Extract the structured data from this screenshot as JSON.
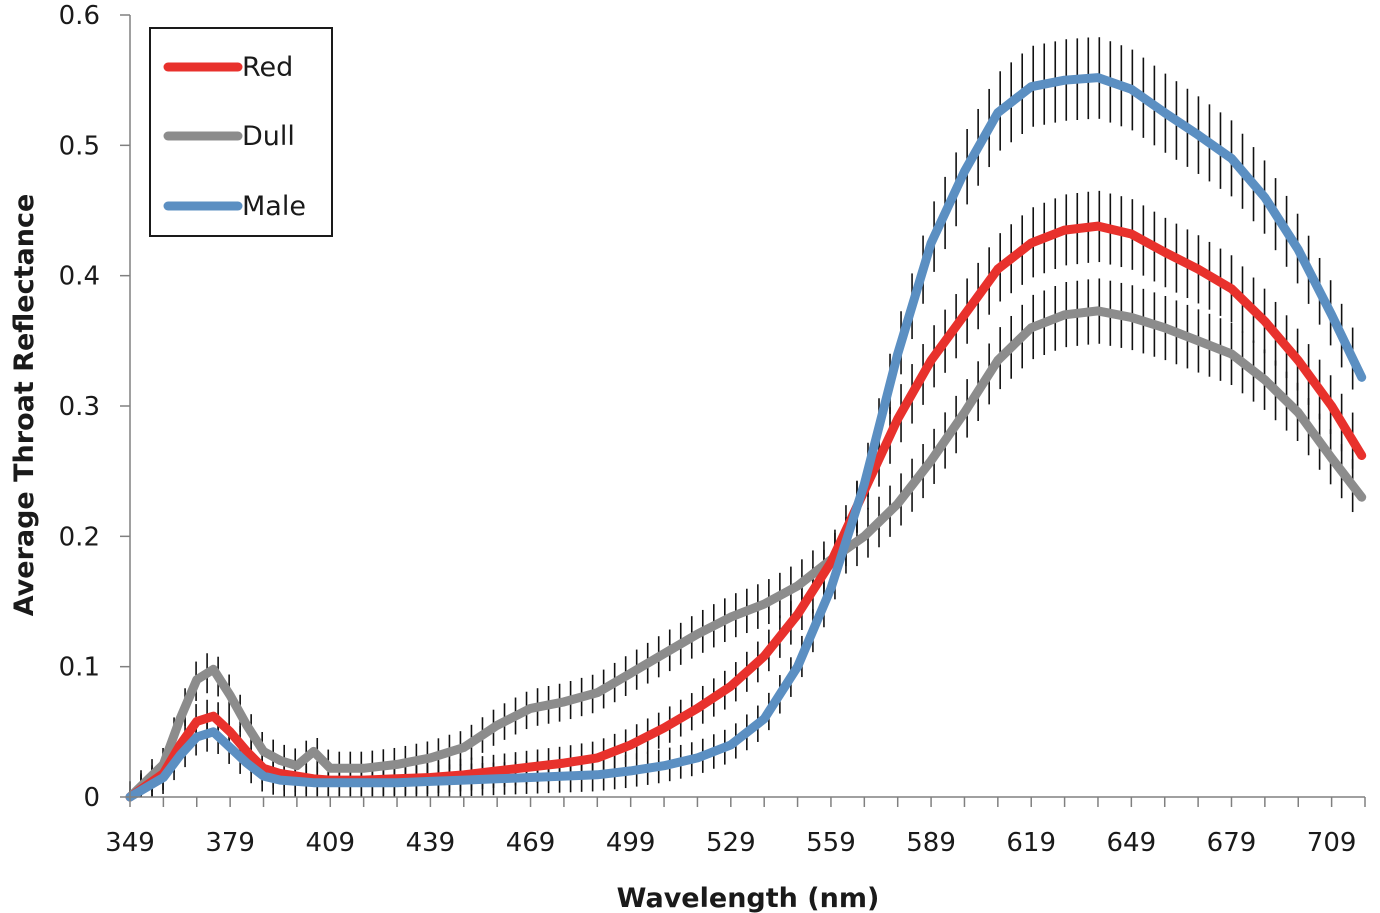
{
  "chart_data": {
    "type": "line",
    "title": "",
    "xlabel": "Wavelength (nm)",
    "ylabel": "Average Throat Reflectance",
    "xlim": [
      349,
      719
    ],
    "ylim": [
      0,
      0.6
    ],
    "x_tick_labels": [
      "349",
      "379",
      "409",
      "439",
      "469",
      "499",
      "529",
      "559",
      "589",
      "619",
      "649",
      "679",
      "709"
    ],
    "y_tick_labels": [
      "0",
      "0.1",
      "0.2",
      "0.3",
      "0.4",
      "0.5",
      "0.6"
    ],
    "grid": false,
    "legend_position": "top-left",
    "error_bars": true,
    "x": [
      349,
      359,
      364,
      369,
      374,
      379,
      384,
      389,
      394,
      399,
      404,
      409,
      419,
      429,
      439,
      449,
      459,
      469,
      479,
      489,
      499,
      509,
      519,
      529,
      539,
      549,
      559,
      569,
      579,
      589,
      599,
      609,
      619,
      629,
      639,
      649,
      659,
      669,
      679,
      689,
      699,
      709,
      718
    ],
    "series": [
      {
        "name": "Red",
        "color": "#e8312c",
        "values": [
          0.0,
          0.018,
          0.04,
          0.058,
          0.062,
          0.05,
          0.035,
          0.022,
          0.018,
          0.016,
          0.014,
          0.013,
          0.013,
          0.014,
          0.015,
          0.017,
          0.02,
          0.023,
          0.026,
          0.03,
          0.04,
          0.053,
          0.068,
          0.085,
          0.108,
          0.14,
          0.18,
          0.235,
          0.29,
          0.335,
          0.37,
          0.405,
          0.425,
          0.435,
          0.438,
          0.432,
          0.418,
          0.405,
          0.39,
          0.365,
          0.335,
          0.3,
          0.262
        ]
      },
      {
        "name": "Dull",
        "color": "#8c8c8c",
        "values": [
          0.0,
          0.025,
          0.06,
          0.09,
          0.098,
          0.078,
          0.055,
          0.035,
          0.028,
          0.024,
          0.035,
          0.022,
          0.022,
          0.025,
          0.03,
          0.038,
          0.055,
          0.068,
          0.073,
          0.08,
          0.095,
          0.11,
          0.125,
          0.138,
          0.148,
          0.162,
          0.182,
          0.2,
          0.225,
          0.258,
          0.295,
          0.335,
          0.36,
          0.37,
          0.373,
          0.368,
          0.36,
          0.35,
          0.34,
          0.32,
          0.295,
          0.26,
          0.23
        ]
      },
      {
        "name": "Male",
        "color": "#5b8fc2",
        "values": [
          0.0,
          0.015,
          0.032,
          0.046,
          0.05,
          0.038,
          0.026,
          0.016,
          0.013,
          0.012,
          0.011,
          0.011,
          0.011,
          0.011,
          0.012,
          0.013,
          0.014,
          0.015,
          0.016,
          0.017,
          0.02,
          0.024,
          0.03,
          0.04,
          0.06,
          0.1,
          0.16,
          0.24,
          0.34,
          0.425,
          0.48,
          0.525,
          0.545,
          0.55,
          0.552,
          0.543,
          0.525,
          0.508,
          0.49,
          0.46,
          0.42,
          0.37,
          0.322
        ]
      }
    ]
  }
}
